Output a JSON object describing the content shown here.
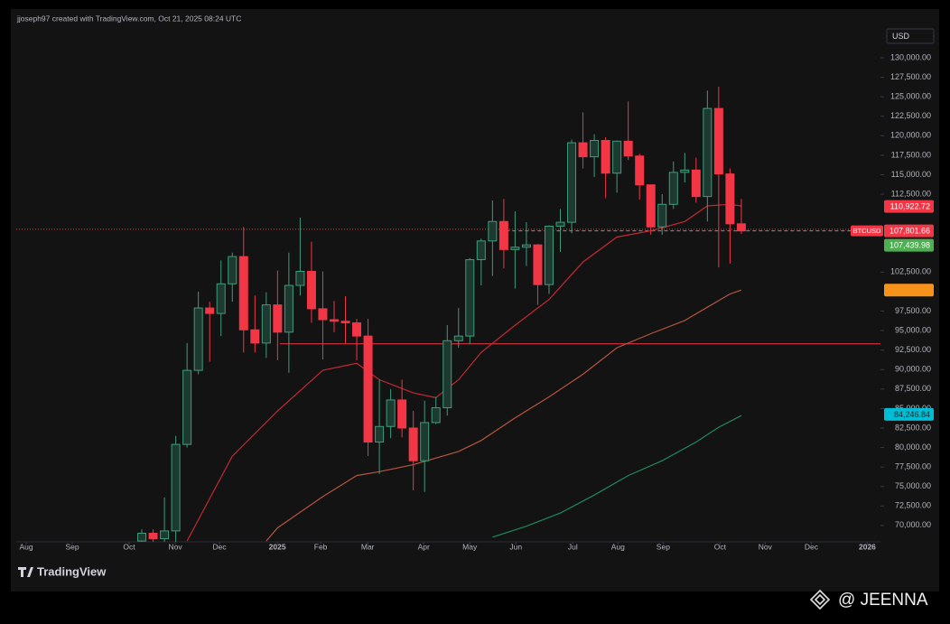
{
  "chart_data": {
    "type": "candlestick",
    "title": "jjoseph97 created with TradingView.com, Oct 21, 2025 08:24 UTC",
    "currency": "USD",
    "brand": "TradingView",
    "watermark": "@ JEENNA",
    "symbol": "BTCUSD",
    "up_color": "#2f7d63",
    "down_color": "#f23645",
    "open": [
      68000,
      69000,
      68300,
      69300,
      80400,
      89900,
      97900,
      97200,
      101000,
      104500,
      95100,
      93400,
      98300,
      94800,
      100800,
      102600,
      97800,
      96400,
      96200,
      96000,
      94300,
      80700,
      82700,
      86100,
      82500,
      78300,
      83200,
      85100,
      93700,
      94300,
      104100,
      106500,
      109000,
      105400,
      105700,
      106000,
      100900,
      108400,
      108900,
      119100,
      117300,
      119400,
      115200,
      119300,
      117400,
      113700,
      108300,
      111200,
      115300,
      115600,
      112200,
      123500,
      115100,
      108700
    ],
    "high": [
      69500,
      69500,
      73600,
      81500,
      93400,
      100000,
      98700,
      104000,
      105000,
      108300,
      99500,
      99900,
      102700,
      105000,
      109500,
      106400,
      102600,
      98800,
      99400,
      96500,
      96500,
      88700,
      87500,
      88700,
      84700,
      86000,
      86500,
      95700,
      97900,
      104300,
      106800,
      111700,
      111900,
      110300,
      108900,
      106100,
      108500,
      110600,
      119500,
      123000,
      120200,
      119800,
      119400,
      124400,
      117700,
      113500,
      112500,
      116700,
      117800,
      117200,
      125800,
      126300,
      115800,
      111900
    ],
    "low": [
      67000,
      66500,
      66800,
      66800,
      80000,
      89400,
      91000,
      94300,
      98700,
      92200,
      92200,
      91500,
      91200,
      89600,
      99500,
      96000,
      91300,
      94800,
      93400,
      91200,
      78900,
      76600,
      81200,
      81300,
      74500,
      74300,
      83000,
      84100,
      92800,
      93300,
      100800,
      102000,
      103000,
      100400,
      103300,
      98300,
      99700,
      105100,
      107500,
      115800,
      114700,
      112000,
      112700,
      116900,
      111800,
      107300,
      107300,
      110600,
      114000,
      111400,
      109000,
      103100,
      103600,
      107400
    ],
    "close": [
      69000,
      68300,
      69300,
      80400,
      89900,
      97900,
      97200,
      101000,
      104500,
      95100,
      93400,
      98300,
      94800,
      100800,
      102600,
      97800,
      96400,
      96200,
      96000,
      94300,
      80700,
      82700,
      86100,
      82500,
      78300,
      83200,
      85100,
      93700,
      94300,
      104100,
      106500,
      109000,
      105400,
      105700,
      106000,
      100900,
      108400,
      108900,
      119100,
      117300,
      119400,
      115200,
      119300,
      117400,
      113700,
      108300,
      111200,
      115300,
      115600,
      112200,
      123500,
      115100,
      108700,
      107800
    ],
    "series": [
      {
        "color": "#c62833",
        "x": [
          4,
          8,
          12,
          16,
          19,
          21,
          24,
          26,
          28,
          30,
          33,
          36,
          39,
          42,
          45,
          48,
          50,
          52,
          53
        ],
        "values": [
          68000,
          78900,
          84700,
          89900,
          90800,
          88700,
          87000,
          86400,
          88700,
          92200,
          95700,
          99000,
          103800,
          107000,
          107800,
          109000,
          111000,
          111200,
          111000
        ]
      },
      {
        "color": "#b5553f",
        "x": [
          11,
          12,
          16,
          19,
          21,
          24,
          28,
          30,
          33,
          36,
          39,
          42,
          45,
          48,
          50,
          52,
          53
        ],
        "values": [
          68000,
          69700,
          73700,
          76400,
          76900,
          77800,
          79500,
          80900,
          83800,
          86500,
          89400,
          92800,
          94600,
          96300,
          98000,
          99700,
          100200
        ]
      },
      {
        "color": "#1e8a5c",
        "x": [
          31,
          34,
          37,
          40,
          43,
          46,
          49,
          51,
          53
        ],
        "values": [
          68500,
          69900,
          71600,
          73900,
          76400,
          78300,
          80700,
          82600,
          84100
        ]
      }
    ],
    "hlines": [
      {
        "value": 93300,
        "x_start": 12.2,
        "color": "#f23645",
        "style": "solid"
      },
      {
        "value": 108000,
        "color": "#f23645",
        "style": "dotted"
      },
      {
        "value": 107801.66,
        "x_start": 32.2,
        "color": "#8a8e99",
        "style": "dashed"
      }
    ],
    "price_labels": [
      {
        "value": 110922.72,
        "label": "110,922.72",
        "color": "#f23645"
      },
      {
        "value": 107801.66,
        "label": "107,801.66",
        "color": "#f23645"
      },
      {
        "value": 107439.98,
        "label": "107,439.98",
        "color": "#4caf50"
      },
      {
        "value": 100200,
        "color": "#f7931a"
      },
      {
        "value": 84246.84,
        "label": "84,246.84",
        "color": "#00bcd4"
      }
    ],
    "xlim": [
      -11.1,
      65.3
    ],
    "xticks": [
      {
        "value": -10.22,
        "label": "Aug"
      },
      {
        "value": -6.15,
        "label": "Sep"
      },
      {
        "value": -1.12,
        "label": "Oct"
      },
      {
        "value": 2.96,
        "label": "Nov"
      },
      {
        "value": 6.87,
        "label": "Dec"
      },
      {
        "value": 11.98,
        "label": "2025"
      },
      {
        "value": 15.81,
        "label": "Feb"
      },
      {
        "value": 19.97,
        "label": "Mar"
      },
      {
        "value": 24.92,
        "label": "Apr"
      },
      {
        "value": 28.99,
        "label": "May"
      },
      {
        "value": 33.07,
        "label": "Jun"
      },
      {
        "value": 38.1,
        "label": "Jul"
      },
      {
        "value": 42.09,
        "label": "Aug"
      },
      {
        "value": 46.09,
        "label": "Sep"
      },
      {
        "value": 51.12,
        "label": "Oct"
      },
      {
        "value": 55.11,
        "label": "Nov"
      },
      {
        "value": 59.19,
        "label": "Dec"
      },
      {
        "value": 64.14,
        "label": "2026"
      }
    ],
    "ylim": [
      67900,
      133940
    ],
    "yticks": [
      {
        "value": 130000,
        "label": "130,000.00"
      },
      {
        "value": 127500,
        "label": "127,500.00"
      },
      {
        "value": 125000,
        "label": "125,000.00"
      },
      {
        "value": 122500,
        "label": "122,500.00"
      },
      {
        "value": 120000,
        "label": "120,000.00"
      },
      {
        "value": 117500,
        "label": "117,500.00"
      },
      {
        "value": 115000,
        "label": "115,000.00"
      },
      {
        "value": 112500,
        "label": "112,500.00"
      },
      {
        "value": 102500,
        "label": "102,500.00"
      },
      {
        "value": 97500,
        "label": "97,500.00"
      },
      {
        "value": 95000,
        "label": "95,000.00"
      },
      {
        "value": 92500,
        "label": "92,500.00"
      },
      {
        "value": 90000,
        "label": "90,000.00"
      },
      {
        "value": 87500,
        "label": "87,500.00"
      },
      {
        "value": 85000,
        "label": "85,000.00"
      },
      {
        "value": 82500,
        "label": "82,500.00"
      },
      {
        "value": 80000,
        "label": "80,000.00"
      },
      {
        "value": 77500,
        "label": "77,500.00"
      },
      {
        "value": 75000,
        "label": "75,000.00"
      },
      {
        "value": 72500,
        "label": "72,500.00"
      },
      {
        "value": 70000,
        "label": "70,000.00"
      }
    ]
  }
}
